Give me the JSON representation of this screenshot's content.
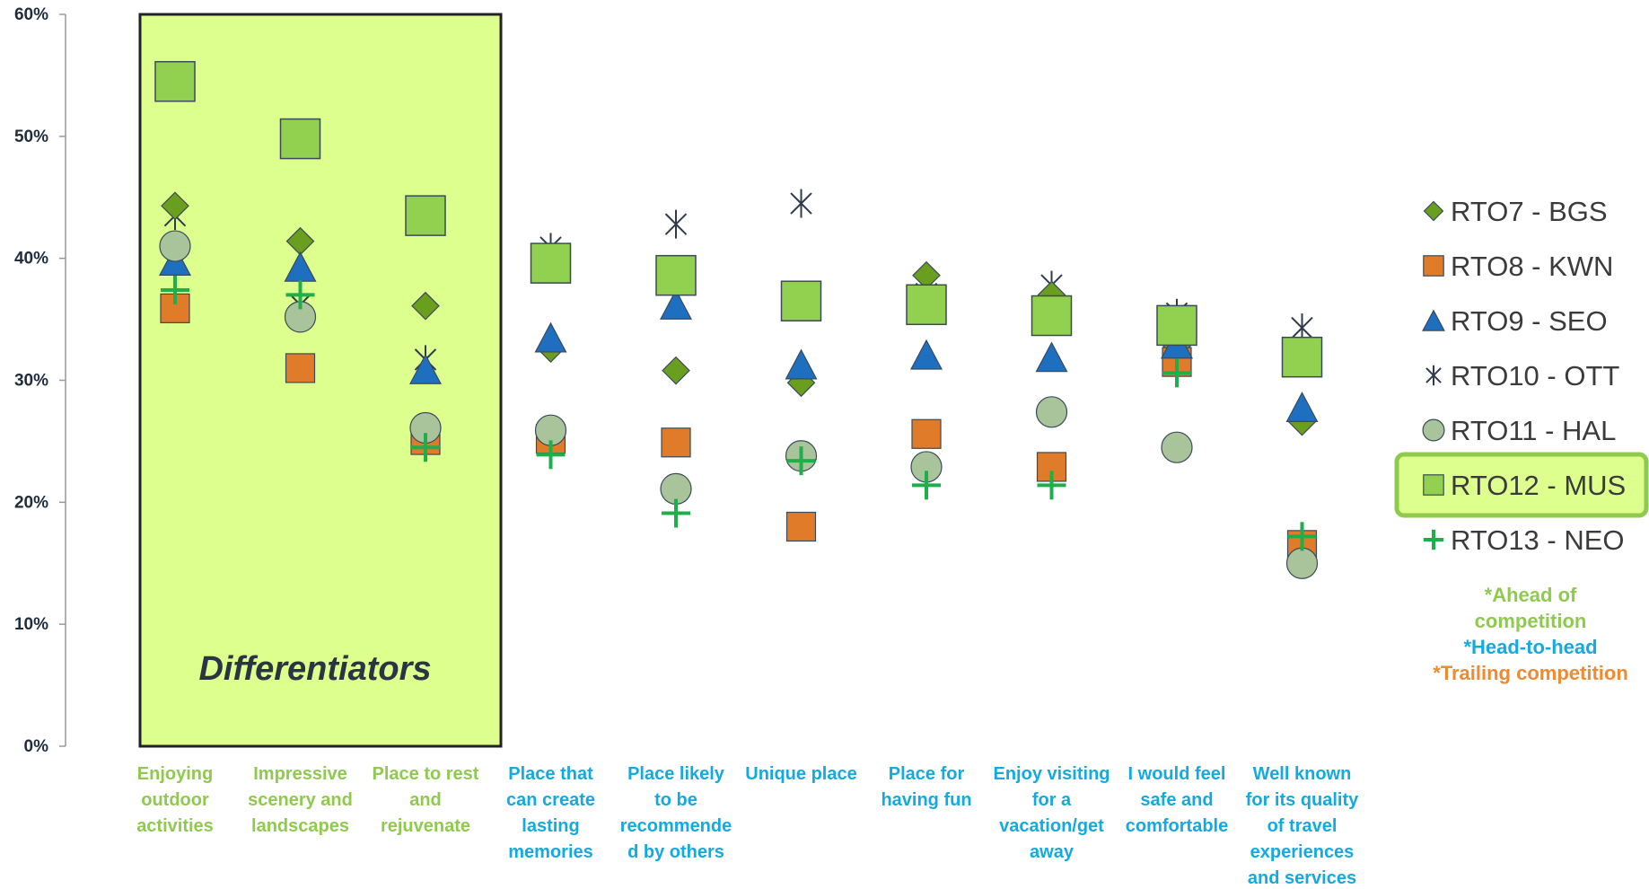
{
  "chart_data": {
    "type": "scatter",
    "ylim": [
      0,
      60
    ],
    "yticks": [
      "0%",
      "10%",
      "20%",
      "30%",
      "40%",
      "50%",
      "60%"
    ],
    "categories": [
      {
        "lines": [
          "Enjoying",
          "outdoor",
          "activities"
        ],
        "group": "ahead"
      },
      {
        "lines": [
          "Impressive",
          "scenery and",
          "landscapes"
        ],
        "group": "ahead"
      },
      {
        "lines": [
          "Place to rest",
          "and",
          "rejuvenate"
        ],
        "group": "ahead"
      },
      {
        "lines": [
          "Place that",
          "can create",
          "lasting",
          "memories"
        ],
        "group": "head"
      },
      {
        "lines": [
          "Place likely",
          "to be",
          "recommende",
          "d by others"
        ],
        "group": "head"
      },
      {
        "lines": [
          "Unique place"
        ],
        "group": "head"
      },
      {
        "lines": [
          "Place for",
          "having fun"
        ],
        "group": "head"
      },
      {
        "lines": [
          "Enjoy visiting",
          "for a",
          "vacation/get",
          "away"
        ],
        "group": "head"
      },
      {
        "lines": [
          "I would feel",
          "safe and",
          "comfortable"
        ],
        "group": "head"
      },
      {
        "lines": [
          "Well known",
          "for its quality",
          "of travel",
          "experiences",
          "and services"
        ],
        "group": "head"
      }
    ],
    "series": [
      {
        "name": "RTO7 - BGS",
        "marker": "diamond",
        "color": "#6a9e1f",
        "values": [
          44.3,
          41.4,
          36.1,
          32.6,
          30.8,
          29.8,
          38.6,
          37.0,
          32.8,
          26.6
        ]
      },
      {
        "name": "RTO8 - KWN",
        "marker": "square",
        "color": "#e07b2a",
        "values": [
          35.9,
          31.0,
          25.1,
          25.2,
          24.9,
          18.0,
          25.6,
          22.9,
          31.5,
          16.5
        ]
      },
      {
        "name": "RTO9 - SEO",
        "marker": "triangle",
        "color": "#1f6fc0",
        "values": [
          39.8,
          39.3,
          30.9,
          33.5,
          36.2,
          31.3,
          32.1,
          31.9,
          33.0,
          27.8
        ]
      },
      {
        "name": "RTO10 - OTT",
        "marker": "star",
        "color": "#2f3b4c",
        "values": [
          43.5,
          36.2,
          31.7,
          40.9,
          42.8,
          44.5,
          37.1,
          37.8,
          35.5,
          34.3
        ]
      },
      {
        "name": "RTO11 - HAL",
        "marker": "circle",
        "color": "#a9c49b",
        "values": [
          41.0,
          35.2,
          26.1,
          25.9,
          21.1,
          23.8,
          22.9,
          27.4,
          24.5,
          15.0
        ]
      },
      {
        "name": "RTO12 - MUS",
        "marker": "bigsquare",
        "color": "#92d050",
        "values": [
          54.5,
          49.8,
          43.5,
          39.6,
          38.6,
          36.5,
          36.2,
          35.3,
          34.5,
          31.9
        ]
      },
      {
        "name": "RTO13 - NEO",
        "marker": "plus",
        "color": "#1faf4a",
        "values": [
          37.4,
          37.0,
          24.5,
          23.9,
          19.1,
          23.4,
          21.4,
          21.4,
          30.6,
          17.2
        ]
      }
    ],
    "legend_position": "right",
    "highlighted_series": "RTO12 - MUS",
    "grid": false
  },
  "annotation": "Differentiators",
  "notes": [
    {
      "lines": [
        "*Ahead of",
        "competition"
      ],
      "color": "#8fca4f"
    },
    {
      "lines": [
        "*Head-to-head"
      ],
      "color": "#14aae0"
    },
    {
      "lines": [
        "*Trailing competition"
      ],
      "color": "#ee8a31"
    }
  ],
  "colors": {
    "ahead": "#8fca4f",
    "head": "#14aae0",
    "trailing": "#ee8a31",
    "highlight_fill": "#ddff8e",
    "highlight_border": "#222222",
    "axis": "#999999"
  }
}
